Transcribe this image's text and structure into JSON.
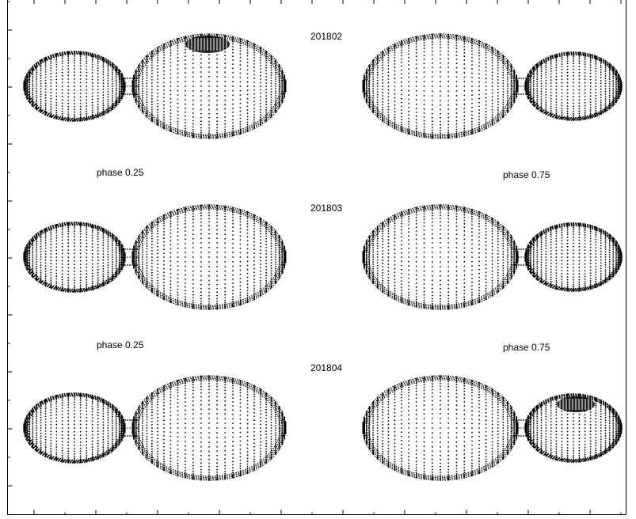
{
  "epochs": [
    {
      "id": "201802",
      "left_phase": "phase 0.25",
      "right_phase": "phase 0.75",
      "spot": "primary"
    },
    {
      "id": "201803",
      "left_phase": "phase 0.25",
      "right_phase": "phase 0.75",
      "spot": "none"
    },
    {
      "id": "201804",
      "left_phase": null,
      "right_phase": null,
      "spot": "secondary"
    }
  ],
  "colors": {
    "frame": "#000000",
    "dots": "#000000",
    "background": "#ffffff"
  }
}
